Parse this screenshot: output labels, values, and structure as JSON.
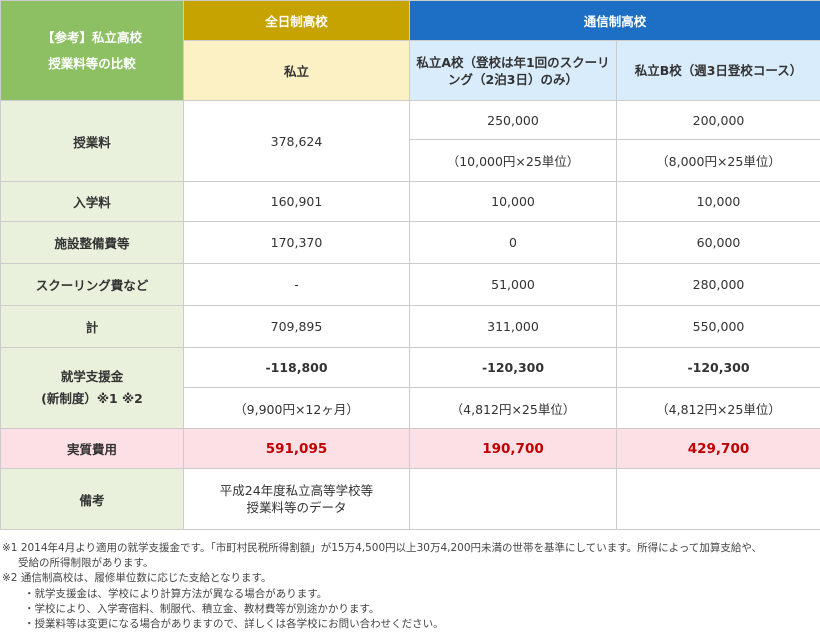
{
  "corner": {
    "line1": "【参考】私立高校",
    "line2": "授業料等の比較"
  },
  "headers": {
    "fulltime": "全日制高校",
    "correspondence": "通信制高校",
    "col_private": "私立",
    "col_school_a": "私立A校（登校は年1回のスクーリング（2泊3日）のみ）",
    "col_school_b": "私立B校（週3日登校コース）"
  },
  "rows": {
    "tuition": {
      "label": "授業料",
      "private": "378,624",
      "a_value": "250,000",
      "a_detail": "（10,000円×25単位）",
      "b_value": "200,000",
      "b_detail": "（8,000円×25単位）"
    },
    "enrollment": {
      "label": "入学料",
      "private": "160,901",
      "a": "10,000",
      "b": "10,000"
    },
    "facility": {
      "label": "施設整備費等",
      "private": "170,370",
      "a": "0",
      "b": "60,000"
    },
    "schooling": {
      "label": "スクーリング費など",
      "private": "-",
      "a": "51,000",
      "b": "280,000"
    },
    "total": {
      "label": "計",
      "private": "709,895",
      "a": "311,000",
      "b": "550,000"
    },
    "support": {
      "label_line1": "就学支援金",
      "label_line2": "(新制度）※1 ※2",
      "private_value": "-118,800",
      "private_detail": "（9,900円×12ヶ月）",
      "a_value": "-120,300",
      "a_detail": "（4,812円×25単位）",
      "b_value": "-120,300",
      "b_detail": "（4,812円×25単位）"
    },
    "net": {
      "label": "実質費用",
      "private": "591,095",
      "a": "190,700",
      "b": "429,700"
    },
    "remarks": {
      "label": "備考",
      "private_line1": "平成24年度私立高等学校等",
      "private_line2": "授業料等のデータ",
      "a": "",
      "b": ""
    }
  },
  "notes": {
    "note1": "※1 2014年4月より適用の就学支援金です。「市町村民税所得割額」が15万4,500円以上30万4,200円未満の世帯を基準にしています。所得によって加算支給や、",
    "note1_cont": "受給の所得制限があります。",
    "note2": "※2 通信制高校は、履修単位数に応じた支給となります。",
    "bullets": [
      "・就学支援金は、学校により計算方法が異なる場合があります。",
      "・学校により、入学寄宿料、制服代、積立金、教材費等が別途かかります。",
      "・授業料等は変更になる場合がありますので、詳しくは各学校にお問い合わせください。"
    ]
  },
  "colors": {
    "green": "#8cc063",
    "gold": "#c7a300",
    "blue": "#1c6fc4",
    "red": "#c00000"
  }
}
